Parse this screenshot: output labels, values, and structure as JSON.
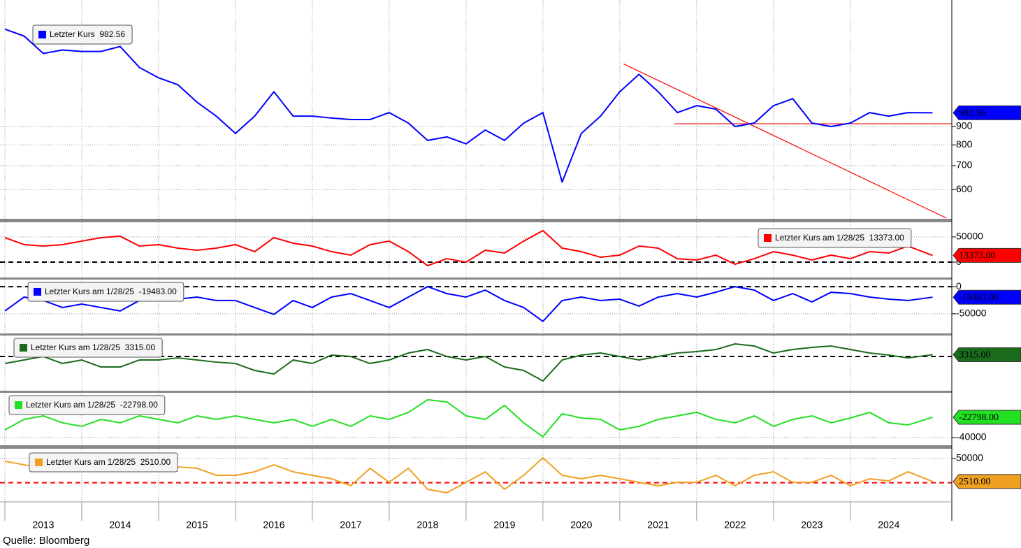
{
  "chart_data": {
    "type": "line",
    "source": "Quelle: Bloomberg",
    "x": [
      2013,
      2013.25,
      2013.5,
      2013.75,
      2014,
      2014.25,
      2014.5,
      2014.75,
      2015,
      2015.25,
      2015.5,
      2015.75,
      2016,
      2016.25,
      2016.5,
      2016.75,
      2017,
      2017.25,
      2017.5,
      2017.75,
      2018,
      2018.25,
      2018.5,
      2018.75,
      2019,
      2019.25,
      2019.5,
      2019.75,
      2020,
      2020.25,
      2020.5,
      2020.75,
      2021,
      2021.25,
      2021.5,
      2021.75,
      2022,
      2022.25,
      2022.5,
      2022.75,
      2023,
      2023.25,
      2023.5,
      2023.75,
      2024,
      2024.25,
      2024.5,
      2024.75,
      2025.07
    ],
    "xlim": [
      2013,
      2025.32
    ],
    "xticks": [
      2013,
      2014,
      2015,
      2016,
      2017,
      2018,
      2019,
      2020,
      2021,
      2022,
      2023,
      2024
    ],
    "grid": true,
    "panels": [
      {
        "log": true,
        "ylim": [
          500,
          2000
        ],
        "yticks": [
          600,
          700,
          800,
          900
        ],
        "series": [
          {
            "name": "Letzter Kurs",
            "color": "#0000ff",
            "last_label": "982.56",
            "values": [
              1681,
              1608,
              1438,
              1471,
              1457,
              1457,
              1504,
              1315,
              1230,
              1177,
              1052,
              962,
              861,
              962,
              1125,
              962,
              962,
              950,
              941,
              941,
              984,
              920,
              823,
              842,
              805,
              880,
              823,
              920,
              984,
              630,
              861,
              962,
              1125,
              1258,
              1125,
              984,
              1029,
              1006,
              900,
              920,
              1029,
              1076,
              920,
              900,
              920,
              984,
              962,
              984,
              982.56
            ]
          }
        ],
        "lines": [
          {
            "color": "#ff0000",
            "x": [
              2021.05,
              2025.25
            ],
            "values": [
              1345,
              500
            ]
          },
          {
            "color": "#ff0000",
            "x": [
              2021.71,
              2025.32
            ],
            "values": [
              916,
              916
            ]
          }
        ]
      },
      {
        "ylim": [
          -29000,
          79000
        ],
        "yticks": [
          0,
          50000
        ],
        "ref_lines": [
          {
            "value": 0,
            "color": "#000000"
          }
        ],
        "series": [
          {
            "name": "Letzter Kurs am 1/28/25",
            "color": "#ff0000",
            "last_label": "13373.00",
            "values": [
              48600,
              34700,
              31900,
              34700,
              41700,
              48600,
              51400,
              31900,
              34700,
              27800,
              23600,
              27800,
              34700,
              20800,
              48600,
              37500,
              31900,
              20800,
              13900,
              34700,
              41700,
              20800,
              -6900,
              6900,
              0,
              23600,
              18100,
              41700,
              62500,
              27800,
              20800,
              9700,
              13900,
              31900,
              27800,
              6900,
              4200,
              13900,
              -4200,
              6900,
              20800,
              13900,
              4200,
              13900,
              6900,
              20800,
              18100,
              31900,
              13373
            ]
          }
        ]
      },
      {
        "ylim": [
          -85000,
          13000
        ],
        "yticks": [
          0,
          -50000
        ],
        "ref_lines": [
          {
            "value": 0,
            "color": "#000000"
          }
        ],
        "series": [
          {
            "name": "Letzter Kurs am 1/28/25",
            "color": "#0000ff",
            "last_label": "-19483.00",
            "values": [
              -44900,
              -19200,
              -25600,
              -38500,
              -32100,
              -38500,
              -44900,
              -25600,
              -19200,
              -23100,
              -19200,
              -25600,
              -25600,
              -38500,
              -51300,
              -25600,
              -38500,
              -19200,
              -12800,
              -25600,
              -38500,
              -19200,
              0,
              -12800,
              -19200,
              -6400,
              -25600,
              -38500,
              -64100,
              -25600,
              -19200,
              -25600,
              -23100,
              -35900,
              -19200,
              -12800,
              -19200,
              -10300,
              0,
              -6400,
              -25600,
              -12800,
              -28200,
              -10300,
              -12800,
              -19200,
              -23100,
              -25600,
              -19483
            ]
          }
        ]
      },
      {
        "ylim": [
          -61500,
          38500
        ],
        "yticks": [],
        "ref_lines": [
          {
            "value": 0,
            "color": "#000000"
          }
        ],
        "series": [
          {
            "name": "Letzter Kurs am 1/28/25",
            "color": "#1a6b1a",
            "last_label": "3315.00",
            "values": [
              -12800,
              -6400,
              0,
              -12800,
              -6400,
              -19200,
              -19200,
              -6400,
              -6400,
              -2600,
              -6400,
              -10300,
              -12800,
              -25600,
              -32100,
              -6400,
              -12800,
              2600,
              0,
              -12800,
              -6400,
              6400,
              12800,
              0,
              -6400,
              0,
              -19200,
              -25600,
              -44900,
              -6400,
              2600,
              6400,
              0,
              -6400,
              0,
              6400,
              9000,
              12800,
              23100,
              19200,
              6400,
              12800,
              16700,
              19200,
              12800,
              6400,
              2600,
              -2600,
              3315
            ]
          }
        ]
      },
      {
        "ylim": [
          -46000,
          -2000
        ],
        "yticks": [
          -40000
        ],
        "series": [
          {
            "name": "Letzter Kurs am 1/28/25",
            "color": "#22e022",
            "last_label": "-22798.00",
            "values": [
              -33500,
              -24600,
              -21600,
              -27500,
              -30500,
              -24600,
              -27500,
              -21600,
              -24600,
              -27500,
              -21600,
              -24600,
              -21600,
              -24600,
              -27500,
              -24600,
              -30500,
              -24600,
              -30500,
              -21600,
              -24600,
              -18600,
              -7900,
              -9700,
              -21600,
              -24600,
              -12700,
              -27500,
              -39400,
              -19800,
              -23400,
              -24600,
              -33500,
              -30500,
              -24600,
              -21600,
              -18600,
              -24600,
              -27500,
              -21600,
              -30500,
              -24600,
              -21600,
              -27500,
              -23400,
              -18600,
              -27500,
              -29300,
              -22798
            ]
          }
        ]
      },
      {
        "ylim": [
          -39300,
          70000
        ],
        "yticks": [
          50000
        ],
        "ref_lines": [
          {
            "value": 0,
            "color": "#ff0000"
          }
        ],
        "series": [
          {
            "name": "Letzter Kurs am 1/28/25",
            "color": "#f0a020",
            "last_label": "2510.00",
            "values": [
              44200,
              37000,
              29800,
              32700,
              37000,
              29800,
              32700,
              26900,
              37000,
              32700,
              29800,
              15400,
              15400,
              22600,
              37000,
              22600,
              15400,
              8200,
              -6200,
              29800,
              1000,
              29800,
              -13400,
              -20600,
              1000,
              22600,
              -13400,
              15400,
              51400,
              15400,
              8200,
              15400,
              8200,
              1000,
              -6200,
              1000,
              1000,
              15400,
              -6200,
              15400,
              22600,
              1000,
              1000,
              15400,
              -6200,
              8200,
              3900,
              22600,
              2510
            ]
          }
        ]
      }
    ]
  }
}
